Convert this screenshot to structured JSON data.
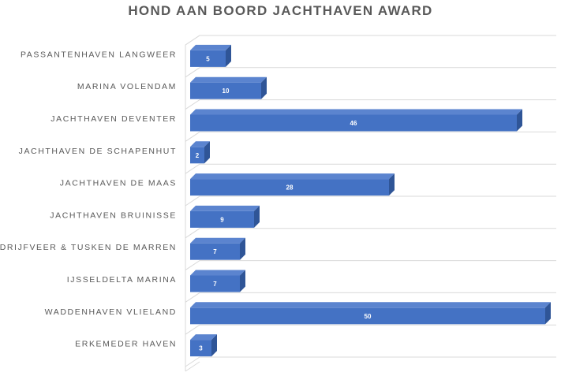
{
  "chart_data": {
    "type": "bar",
    "orientation": "horizontal",
    "three_d": true,
    "title": "HOND AAN BOORD JACHTHAVEN AWARD",
    "xlabel": "",
    "ylabel": "",
    "categories": [
      "PASSANTENHAVEN LANGWEER",
      "MARINA VOLENDAM",
      "JACHTHAVEN DEVENTER",
      "JACHTHAVEN DE SCHAPENHUT",
      "JACHTHAVEN DE MAAS",
      "JACHTHAVEN BRUINISSE",
      "DE DRIJFVEER & TUSKEN DE MARREN",
      "IJSSELDELTA MARINA",
      "WADDENHAVEN VLIELAND",
      "ERKEMEDER HAVEN"
    ],
    "values": [
      5,
      10,
      46,
      2,
      28,
      9,
      7,
      7,
      50,
      3
    ],
    "xlim": [
      0,
      50
    ],
    "grid": true,
    "legend": "none",
    "data_labels": true,
    "colors": {
      "bar_front": "#4472c4",
      "bar_top": "#5b84cf",
      "bar_side": "#2f5597",
      "grid": "#d9d9d9",
      "text": "#595959",
      "value_text": "#ffffff"
    }
  }
}
